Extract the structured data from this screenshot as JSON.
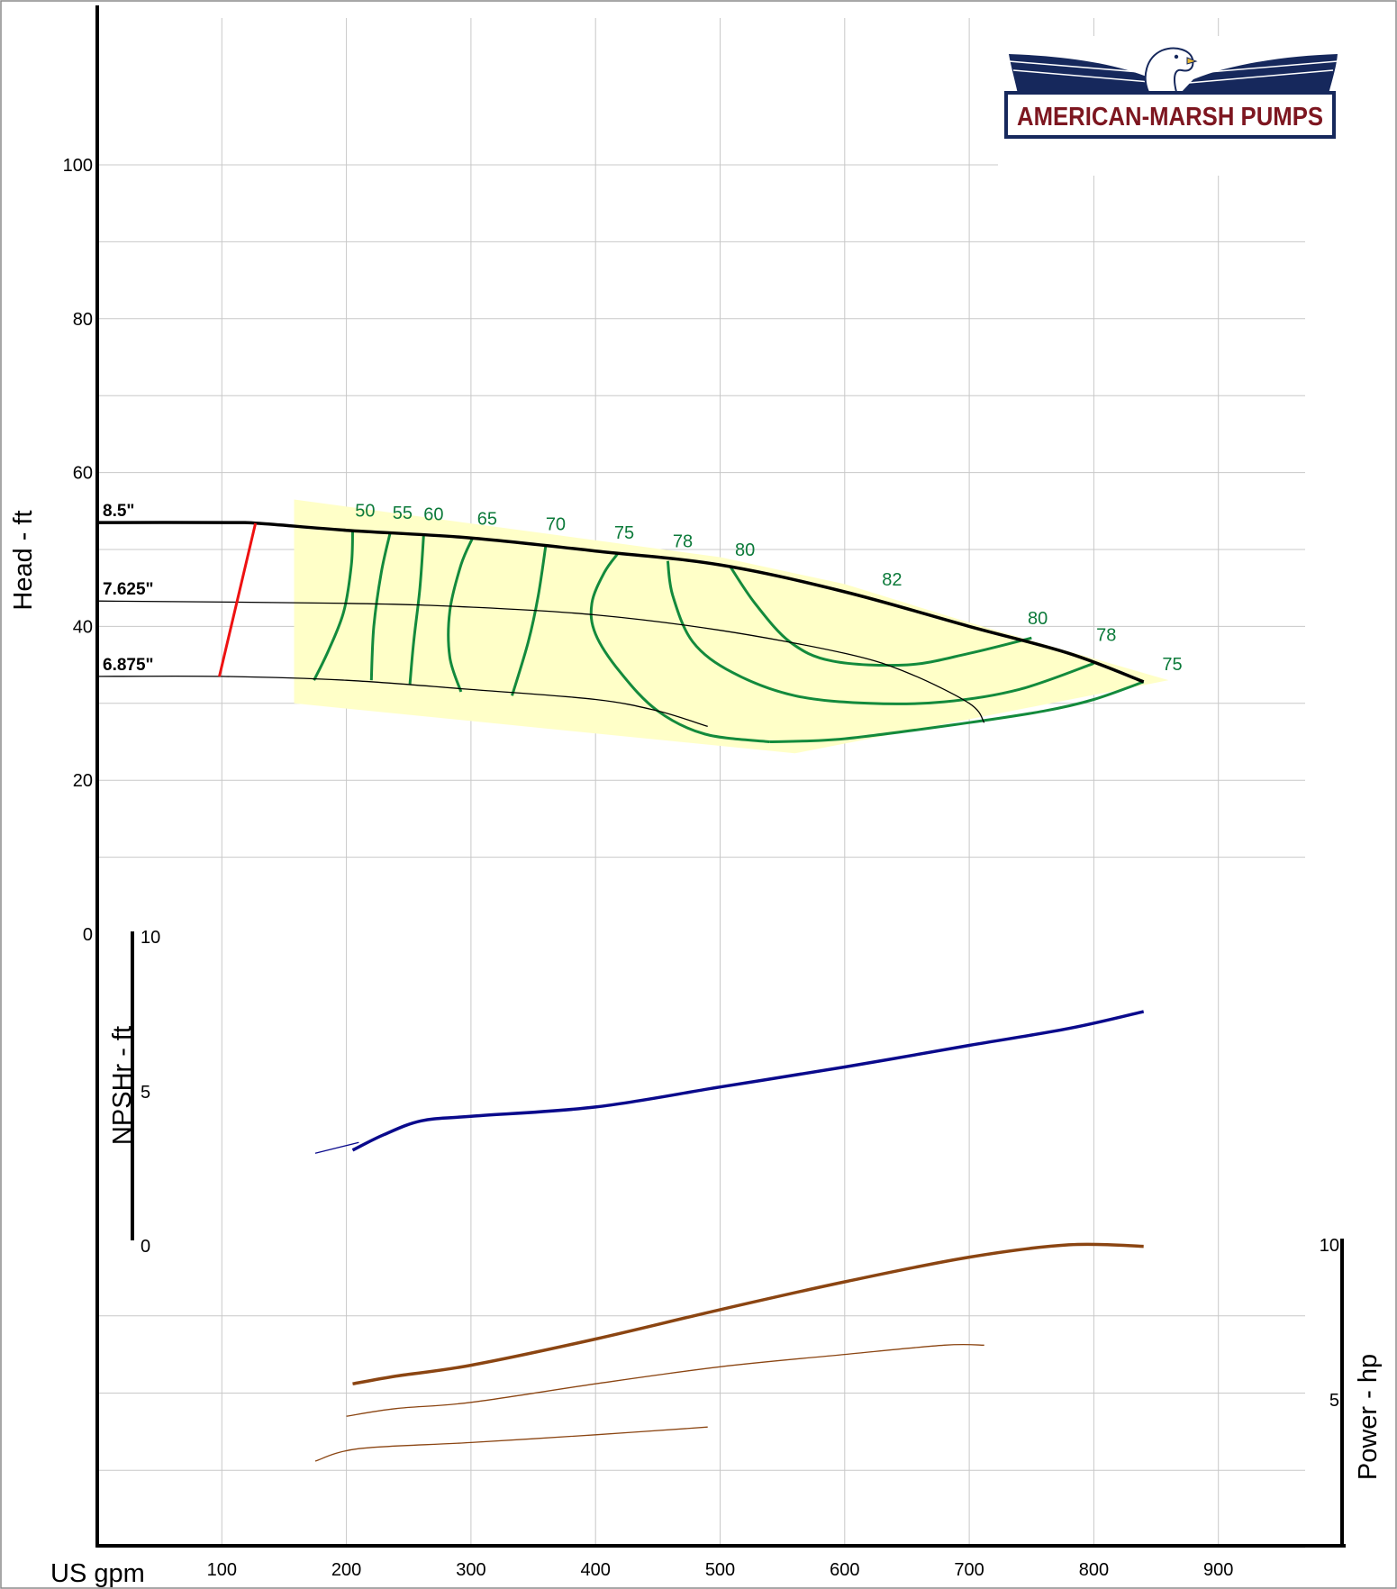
{
  "chart_data": {
    "type": "line",
    "xlabel": "US gpm",
    "x_ticks": [
      100,
      200,
      300,
      400,
      500,
      600,
      700,
      800,
      900
    ],
    "head_panel": {
      "ylabel": "Head - ft",
      "y_ticks": [
        0,
        20,
        40,
        60,
        80,
        100
      ],
      "ylim": [
        0,
        110
      ],
      "impeller_curves": [
        {
          "name": "8.5\"",
          "points": [
            [
              0,
              53.5
            ],
            [
              105,
              53.5
            ],
            [
              130,
              53.4
            ],
            [
              200,
              52.5
            ],
            [
              300,
              51.5
            ],
            [
              400,
              49.8
            ],
            [
              500,
              48
            ],
            [
              600,
              44.5
            ],
            [
              700,
              40
            ],
            [
              780,
              36.5
            ],
            [
              840,
              32.8
            ]
          ]
        },
        {
          "name": "7.625\"",
          "points": [
            [
              0,
              43.3
            ],
            [
              200,
              43
            ],
            [
              300,
              42.5
            ],
            [
              400,
              41.5
            ],
            [
              500,
              39.5
            ],
            [
              600,
              36.5
            ],
            [
              650,
              34
            ],
            [
              700,
              30
            ],
            [
              712,
              27.5
            ]
          ]
        },
        {
          "name": "6.875\"",
          "points": [
            [
              0,
              33.5
            ],
            [
              100,
              33.5
            ],
            [
              200,
              33
            ],
            [
              300,
              31.8
            ],
            [
              400,
              30.5
            ],
            [
              450,
              29
            ],
            [
              490,
              27
            ]
          ]
        }
      ],
      "min_diameter_line": [
        [
          98,
          33.5
        ],
        [
          127,
          53.4
        ]
      ],
      "operating_region": [
        [
          158,
          56.5
        ],
        [
          500,
          49
        ],
        [
          600,
          45.5
        ],
        [
          700,
          40.5
        ],
        [
          860,
          33
        ],
        [
          560,
          23.5
        ],
        [
          158,
          30
        ]
      ],
      "efficiency_contours": [
        {
          "label": "50",
          "points": [
            [
              205,
              52.3
            ],
            [
              204,
              48
            ],
            [
              198,
              42
            ],
            [
              186,
              37
            ],
            [
              174,
              33
            ]
          ]
        },
        {
          "label": "55",
          "points": [
            [
              235,
              52.1
            ],
            [
              228,
              47
            ],
            [
              222,
              40
            ],
            [
              220,
              33
            ]
          ]
        },
        {
          "label": "60",
          "points": [
            [
              262,
              51.8
            ],
            [
              259,
              45
            ],
            [
              254,
              38
            ],
            [
              251,
              32.5
            ]
          ]
        },
        {
          "label": "65",
          "points": [
            [
              301,
              51.4
            ],
            [
              292,
              48
            ],
            [
              283,
              42
            ],
            [
              283,
              36
            ],
            [
              292,
              31.5
            ]
          ]
        },
        {
          "label": "70",
          "points": [
            [
              360,
              50.5
            ],
            [
              354,
              44
            ],
            [
              346,
              38
            ],
            [
              333,
              31
            ]
          ]
        },
        {
          "label": "75",
          "points": [
            [
              418,
              49.5
            ],
            [
              407,
              47
            ],
            [
              397,
              43
            ],
            [
              400,
              39
            ],
            [
              420,
              34
            ],
            [
              450,
              29
            ],
            [
              488,
              26
            ],
            [
              540,
              25
            ]
          ]
        },
        {
          "label": "78",
          "points": [
            [
              458,
              48.5
            ],
            [
              462,
              44
            ],
            [
              478,
              38
            ],
            [
              510,
              34
            ],
            [
              560,
              31
            ],
            [
              620,
              30
            ],
            [
              680,
              30.2
            ],
            [
              740,
              31.8
            ],
            [
              800,
              35.2
            ]
          ]
        },
        {
          "label": "80",
          "points": [
            [
              508,
              47.8
            ],
            [
              528,
              43
            ],
            [
              556,
              38
            ],
            [
              590,
              35.5
            ],
            [
              650,
              35
            ],
            [
              700,
              36.5
            ],
            [
              750,
              38.5
            ]
          ]
        },
        {
          "label": "75",
          "points": [
            [
              540,
              25
            ],
            [
              600,
              25.4
            ],
            [
              700,
              27.5
            ],
            [
              760,
              29
            ],
            [
              800,
              30.5
            ],
            [
              840,
              32.8
            ]
          ]
        }
      ],
      "efficiency_labels": [
        {
          "text": "50",
          "x": 215,
          "y": 54.3
        },
        {
          "text": "55",
          "x": 245,
          "y": 54
        },
        {
          "text": "60",
          "x": 270,
          "y": 53.8
        },
        {
          "text": "65",
          "x": 313,
          "y": 53.2
        },
        {
          "text": "70",
          "x": 368,
          "y": 52.5
        },
        {
          "text": "75",
          "x": 423,
          "y": 51.4
        },
        {
          "text": "78",
          "x": 470,
          "y": 50.3
        },
        {
          "text": "80",
          "x": 520,
          "y": 49.2
        },
        {
          "text": "82",
          "x": 638,
          "y": 45.3
        },
        {
          "text": "80",
          "x": 755,
          "y": 40.3
        },
        {
          "text": "78",
          "x": 810,
          "y": 38.1
        },
        {
          "text": "75",
          "x": 863,
          "y": 34.3
        }
      ]
    },
    "npsh_panel": {
      "ylabel": "NPSHr - ft",
      "y_ticks": [
        0,
        5,
        10
      ],
      "ylim": [
        0,
        10
      ],
      "series": [
        {
          "name": "",
          "points": [
            [
              205,
              2.9
            ],
            [
              230,
              3.4
            ],
            [
              260,
              3.85
            ],
            [
              300,
              4.0
            ],
            [
              400,
              4.3
            ],
            [
              500,
              4.95
            ],
            [
              600,
              5.6
            ],
            [
              700,
              6.3
            ],
            [
              780,
              6.85
            ],
            [
              840,
              7.4
            ]
          ]
        },
        {
          "name": "",
          "points": [
            [
              175,
              2.8
            ],
            [
              210,
              3.15
            ]
          ]
        }
      ]
    },
    "power_panel": {
      "ylabel": "Power - hp",
      "y_ticks": [
        5,
        10
      ],
      "ylim": [
        0,
        10
      ],
      "series": [
        {
          "name": "",
          "points": [
            [
              205,
              5.3
            ],
            [
              240,
              5.55
            ],
            [
              300,
              5.9
            ],
            [
              400,
              6.75
            ],
            [
              500,
              7.7
            ],
            [
              600,
              8.6
            ],
            [
              700,
              9.4
            ],
            [
              780,
              9.8
            ],
            [
              840,
              9.75
            ]
          ]
        },
        {
          "name": "",
          "points": [
            [
              200,
              4.25
            ],
            [
              240,
              4.5
            ],
            [
              300,
              4.7
            ],
            [
              400,
              5.3
            ],
            [
              500,
              5.85
            ],
            [
              600,
              6.25
            ],
            [
              680,
              6.55
            ],
            [
              712,
              6.55
            ]
          ]
        },
        {
          "name": "",
          "points": [
            [
              175,
              2.8
            ],
            [
              210,
              3.2
            ],
            [
              300,
              3.4
            ],
            [
              400,
              3.65
            ],
            [
              490,
              3.9
            ]
          ]
        }
      ]
    }
  },
  "labels": {
    "head_axis": "Head - ft",
    "npsh_axis": "NPSHr - ft",
    "power_axis": "Power - hp",
    "flow_axis": "US gpm",
    "npsh_tick_top": "10",
    "npsh_tick_mid": "5",
    "npsh_tick_bottom": "0",
    "power_tick_top": "10",
    "power_tick_mid": "5"
  },
  "logo": {
    "text": "AMERICAN-MARSH PUMPS",
    "icon": "eagle-icon"
  },
  "colors": {
    "grid": "#c8c8c8",
    "head_curve": "#000000",
    "efficiency": "#138a3c",
    "efficiency_label": "#0c7a3a",
    "region_fill": "#ffffc8",
    "min_diameter": "#ee1111",
    "npsh": "#0a0a8c",
    "power": "#8b4512",
    "logo_wing": "#16285c",
    "logo_text": "#7d1620"
  }
}
